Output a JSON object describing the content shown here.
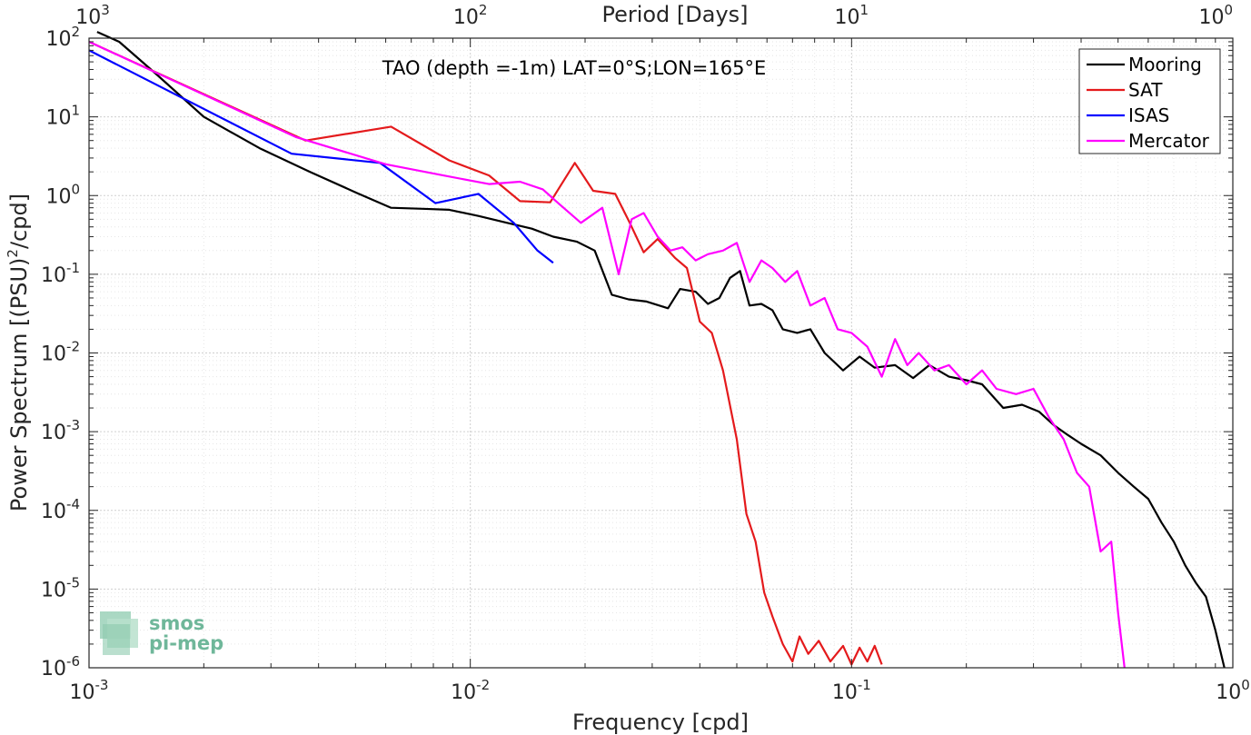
{
  "chart_data": {
    "type": "line",
    "title": "TAO (depth =-1m) LAT=0°S;LON=165°E",
    "xlabel": "Frequency [cpd]",
    "ylabel": "Power Spectrum [(PSU)",
    "ylabel_sup": "2",
    "ylabel_tail": "/cpd]",
    "top_xlabel": "Period [Days]",
    "xscale": "log",
    "yscale": "log",
    "xlim": [
      0.001,
      1
    ],
    "ylim": [
      1e-06,
      100
    ],
    "grid": true,
    "legend_position": "top-right",
    "x_ticks": [
      {
        "base": "10",
        "exp": "-3"
      },
      {
        "base": "10",
        "exp": "-2"
      },
      {
        "base": "10",
        "exp": "-1"
      },
      {
        "base": "10",
        "exp": "0"
      }
    ],
    "top_ticks": [
      {
        "base": "10",
        "exp": "3"
      },
      {
        "base": "10",
        "exp": "2"
      },
      {
        "base": "10",
        "exp": "1"
      },
      {
        "base": "10",
        "exp": "0"
      }
    ],
    "y_ticks": [
      {
        "base": "10",
        "exp": "-6"
      },
      {
        "base": "10",
        "exp": "-5"
      },
      {
        "base": "10",
        "exp": "-4"
      },
      {
        "base": "10",
        "exp": "-3"
      },
      {
        "base": "10",
        "exp": "-2"
      },
      {
        "base": "10",
        "exp": "-1"
      },
      {
        "base": "10",
        "exp": "0"
      },
      {
        "base": "10",
        "exp": "1"
      },
      {
        "base": "10",
        "exp": "2"
      }
    ],
    "series": [
      {
        "name": "Mooring",
        "color": "#000000",
        "x": [
          0.00105,
          0.0012,
          0.0015,
          0.002,
          0.0028,
          0.0038,
          0.005,
          0.0062,
          0.0075,
          0.0088,
          0.0105,
          0.0125,
          0.0145,
          0.0165,
          0.019,
          0.0212,
          0.0235,
          0.026,
          0.029,
          0.033,
          0.0355,
          0.039,
          0.042,
          0.045,
          0.048,
          0.051,
          0.054,
          0.058,
          0.062,
          0.066,
          0.072,
          0.078,
          0.085,
          0.095,
          0.105,
          0.115,
          0.13,
          0.145,
          0.16,
          0.18,
          0.2,
          0.22,
          0.25,
          0.28,
          0.31,
          0.34,
          0.37,
          0.4,
          0.45,
          0.5,
          0.55,
          0.6,
          0.65,
          0.7,
          0.75,
          0.8,
          0.85,
          0.9,
          0.95
        ],
        "y": [
          120,
          90,
          35,
          10,
          4,
          2.0,
          1.1,
          0.7,
          0.68,
          0.66,
          0.55,
          0.45,
          0.38,
          0.3,
          0.26,
          0.2,
          0.055,
          0.048,
          0.045,
          0.037,
          0.065,
          0.06,
          0.042,
          0.05,
          0.09,
          0.11,
          0.04,
          0.042,
          0.035,
          0.02,
          0.018,
          0.02,
          0.01,
          0.006,
          0.009,
          0.0065,
          0.007,
          0.0048,
          0.007,
          0.005,
          0.0045,
          0.004,
          0.002,
          0.0022,
          0.0018,
          0.0012,
          0.0009,
          0.0007,
          0.0005,
          0.0003,
          0.0002,
          0.00014,
          7e-05,
          4e-05,
          2e-05,
          1.2e-05,
          8e-06,
          3e-06,
          1e-06
        ]
      },
      {
        "name": "SAT",
        "color": "#e41a1c",
        "x": [
          0.001,
          0.0037,
          0.0062,
          0.0088,
          0.0112,
          0.0135,
          0.0162,
          0.0188,
          0.021,
          0.024,
          0.0262,
          0.0285,
          0.031,
          0.0345,
          0.037,
          0.04,
          0.043,
          0.046,
          0.05,
          0.053,
          0.056,
          0.059,
          0.062,
          0.066,
          0.07,
          0.073,
          0.077,
          0.082,
          0.088,
          0.095,
          0.1,
          0.105,
          0.11,
          0.115,
          0.12
        ],
        "y": [
          90,
          5,
          7.5,
          2.8,
          1.8,
          0.85,
          0.82,
          2.6,
          1.15,
          1.05,
          0.45,
          0.19,
          0.28,
          0.16,
          0.12,
          0.025,
          0.018,
          0.006,
          0.0008,
          9e-05,
          4e-05,
          9e-06,
          4.5e-06,
          2e-06,
          1.2e-06,
          2.5e-06,
          1.5e-06,
          2.2e-06,
          1.2e-06,
          1.9e-06,
          1.1e-06,
          1.8e-06,
          1.2e-06,
          1.9e-06,
          1.1e-06
        ]
      },
      {
        "name": "ISAS",
        "color": "#0000ff",
        "x": [
          0.001,
          0.0034,
          0.0058,
          0.0081,
          0.0105,
          0.013,
          0.015,
          0.0165
        ],
        "y": [
          70,
          3.4,
          2.6,
          0.8,
          1.05,
          0.45,
          0.2,
          0.14
        ]
      },
      {
        "name": "Mercator",
        "color": "#ff00ff",
        "x": [
          0.001,
          0.0035,
          0.006,
          0.0085,
          0.0112,
          0.0135,
          0.0155,
          0.017,
          0.0195,
          0.0222,
          0.0245,
          0.0265,
          0.0285,
          0.031,
          0.0335,
          0.036,
          0.039,
          0.042,
          0.046,
          0.05,
          0.054,
          0.058,
          0.062,
          0.067,
          0.072,
          0.078,
          0.085,
          0.092,
          0.1,
          0.11,
          0.12,
          0.13,
          0.14,
          0.15,
          0.165,
          0.18,
          0.2,
          0.22,
          0.24,
          0.27,
          0.3,
          0.33,
          0.36,
          0.39,
          0.42,
          0.45,
          0.48,
          0.5,
          0.52
        ],
        "y": [
          90,
          5.5,
          2.5,
          1.8,
          1.4,
          1.5,
          1.2,
          0.8,
          0.45,
          0.7,
          0.1,
          0.5,
          0.6,
          0.3,
          0.2,
          0.22,
          0.15,
          0.18,
          0.2,
          0.25,
          0.08,
          0.15,
          0.12,
          0.08,
          0.11,
          0.04,
          0.05,
          0.02,
          0.018,
          0.012,
          0.005,
          0.015,
          0.007,
          0.01,
          0.006,
          0.007,
          0.004,
          0.006,
          0.0035,
          0.003,
          0.0035,
          0.0015,
          0.0008,
          0.0003,
          0.0002,
          3e-05,
          4e-05,
          5e-06,
          1e-06
        ]
      }
    ]
  },
  "logo": {
    "line1": "smos",
    "line2": "pi-mep"
  }
}
